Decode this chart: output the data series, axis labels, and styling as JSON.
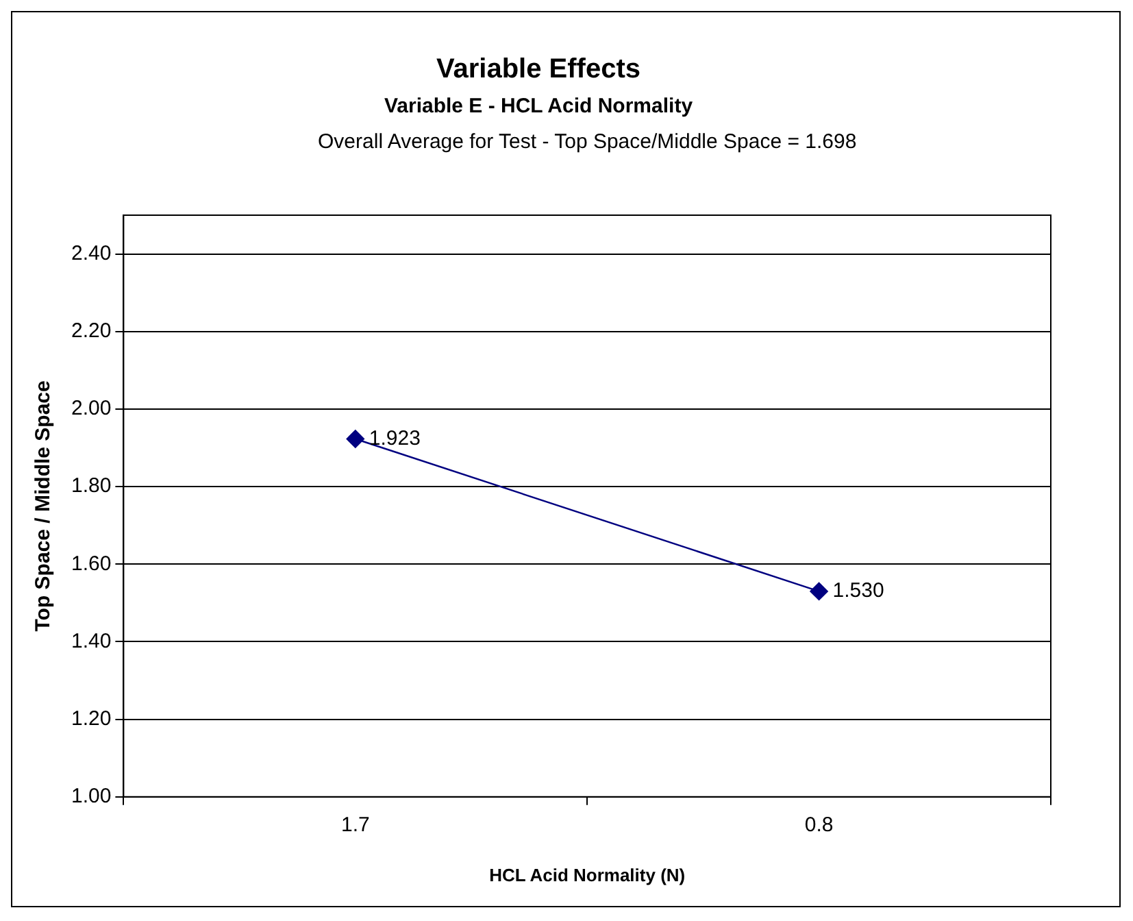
{
  "chart_data": {
    "type": "line",
    "title": "Variable Effects",
    "subtitle": "Variable E - HCL Acid Normality",
    "annotations": [
      "Overall Average for Test - Top Space/Middle Space = 1.698"
    ],
    "xlabel": "HCL Acid Normality (N)",
    "ylabel": "Top Space / Middle Space",
    "categories": [
      "1.7",
      "0.8"
    ],
    "series": [
      {
        "color": "#000080",
        "values": [
          1.923,
          1.53
        ],
        "value_labels": [
          "1.923",
          "1.530"
        ]
      }
    ],
    "ylim": [
      1,
      2.5
    ],
    "yticks": [
      {
        "value": 1,
        "label": "1.00"
      },
      {
        "value": 1.2,
        "label": "1.20"
      },
      {
        "value": 1.4,
        "label": "1.40"
      },
      {
        "value": 1.6,
        "label": "1.60"
      },
      {
        "value": 1.8,
        "label": "1.80"
      },
      {
        "value": 2,
        "label": "2.00"
      },
      {
        "value": 2.2,
        "label": "2.20"
      },
      {
        "value": 2.4,
        "label": "2.40"
      }
    ],
    "grid": "y",
    "legend": false,
    "marker": "diamond",
    "line_style": "solid"
  }
}
